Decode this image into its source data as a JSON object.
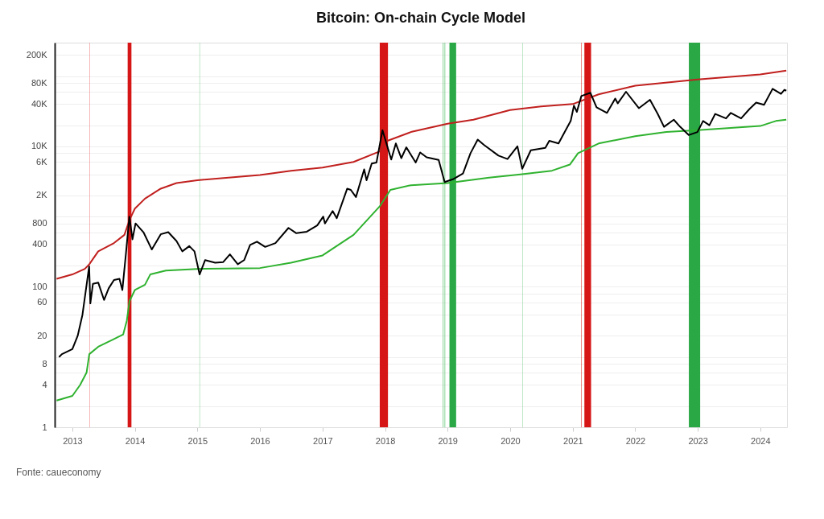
{
  "chart_data": {
    "type": "line",
    "title": "Bitcoin: On-chain Cycle Model",
    "annotations": [
      "Fonte: caueconomy"
    ],
    "log": "y",
    "grid": "y",
    "xlim": [
      "2012-09-20",
      "2024-06-05"
    ],
    "xticks": [
      "2013",
      "2014",
      "2015",
      "2016",
      "2017",
      "2018",
      "2019",
      "2020",
      "2021",
      "2022",
      "2023",
      "2024"
    ],
    "ylim": [
      1,
      300000
    ],
    "yticks": [
      {
        "value": 1,
        "label": "1"
      },
      {
        "value": 2,
        "label": null
      },
      {
        "value": 4,
        "label": "4"
      },
      {
        "value": 6,
        "label": null
      },
      {
        "value": 8,
        "label": "8"
      },
      {
        "value": 10,
        "label": null
      },
      {
        "value": 20,
        "label": "20"
      },
      {
        "value": 40,
        "label": null
      },
      {
        "value": 60,
        "label": "60"
      },
      {
        "value": 80,
        "label": null
      },
      {
        "value": 100,
        "label": "100"
      },
      {
        "value": 200,
        "label": null
      },
      {
        "value": 400,
        "label": "400"
      },
      {
        "value": 600,
        "label": null
      },
      {
        "value": 800,
        "label": "800"
      },
      {
        "value": 1000,
        "label": null
      },
      {
        "value": 2000,
        "label": "2K"
      },
      {
        "value": 4000,
        "label": null
      },
      {
        "value": 6000,
        "label": "6K"
      },
      {
        "value": 8000,
        "label": null
      },
      {
        "value": 10000,
        "label": "10K"
      },
      {
        "value": 20000,
        "label": null
      },
      {
        "value": 40000,
        "label": "40K"
      },
      {
        "value": 60000,
        "label": null
      },
      {
        "value": 80000,
        "label": "80K"
      },
      {
        "value": 100000,
        "label": null
      },
      {
        "value": 200000,
        "label": "200K"
      }
    ],
    "bands": [
      {
        "axis": "x",
        "from": "2013-04-10",
        "to": "2013-04-13",
        "color": "#f08a8a"
      },
      {
        "axis": "x",
        "from": "2013-11-20",
        "to": "2013-12-12",
        "color": "#d40a0a"
      },
      {
        "axis": "x",
        "from": "2015-01-13",
        "to": "2015-01-16",
        "color": "#98d9a3"
      },
      {
        "axis": "x",
        "from": "2017-12-01",
        "to": "2018-01-18",
        "color": "#d40a0a"
      },
      {
        "axis": "x",
        "from": "2018-12-05",
        "to": "2018-12-08",
        "color": "#3dba55"
      },
      {
        "axis": "x",
        "from": "2018-12-15",
        "to": "2018-12-18",
        "color": "#3dba55"
      },
      {
        "axis": "x",
        "from": "2019-01-12",
        "to": "2019-02-20",
        "color": "#1ea33b"
      },
      {
        "axis": "x",
        "from": "2020-03-13",
        "to": "2020-03-16",
        "color": "#98d9a3"
      },
      {
        "axis": "x",
        "from": "2021-02-19",
        "to": "2021-02-22",
        "color": "#e23a3a"
      },
      {
        "axis": "x",
        "from": "2021-03-10",
        "to": "2021-04-18",
        "color": "#d40a0a"
      },
      {
        "axis": "x",
        "from": "2022-11-10",
        "to": "2023-01-15",
        "color": "#1ea33b"
      }
    ],
    "series": [
      {
        "color": "#c0201e",
        "x": [
          "2012-10-01",
          "2013-01-01",
          "2013-03-15",
          "2013-04-10",
          "2013-06-01",
          "2013-09-01",
          "2013-11-01",
          "2013-12-01",
          "2014-01-01",
          "2014-03-01",
          "2014-06-01",
          "2014-09-01",
          "2015-01-01",
          "2016-01-01",
          "2016-07-01",
          "2017-01-01",
          "2017-07-01",
          "2017-12-01",
          "2018-01-15",
          "2018-06-01",
          "2019-01-01",
          "2019-06-01",
          "2020-01-01",
          "2020-07-01",
          "2021-01-01",
          "2021-06-01",
          "2022-01-01",
          "2023-01-01",
          "2024-01-01",
          "2024-06-01"
        ],
        "values": [
          130,
          150,
          180,
          210,
          320,
          420,
          550,
          900,
          1300,
          1800,
          2500,
          3000,
          3300,
          3900,
          4500,
          5000,
          6000,
          8500,
          12000,
          16000,
          21000,
          24000,
          33000,
          37000,
          40000,
          55000,
          73000,
          90000,
          106000,
          120000
        ]
      },
      {
        "color": "#2fb22f",
        "x": [
          "2012-10-01",
          "2013-01-01",
          "2013-02-15",
          "2013-03-25",
          "2013-04-10",
          "2013-06-01",
          "2013-09-01",
          "2013-10-25",
          "2013-11-15",
          "2013-12-01",
          "2014-01-01",
          "2014-03-01",
          "2014-04-01",
          "2014-07-01",
          "2015-01-01",
          "2016-01-01",
          "2016-07-01",
          "2017-01-01",
          "2017-07-01",
          "2017-12-01",
          "2018-02-01",
          "2018-06-01",
          "2019-01-01",
          "2019-09-01",
          "2020-03-01",
          "2020-09-01",
          "2020-12-15",
          "2021-02-01",
          "2021-06-01",
          "2022-01-01",
          "2022-07-01",
          "2023-01-01",
          "2024-01-01",
          "2024-04-01",
          "2024-06-01"
        ],
        "values": [
          2.4,
          2.8,
          4,
          6,
          11,
          14,
          18,
          21,
          33,
          63,
          90,
          107,
          150,
          170,
          180,
          185,
          220,
          280,
          550,
          1400,
          2400,
          2800,
          3000,
          3600,
          4000,
          4500,
          5500,
          8000,
          11000,
          14000,
          16000,
          17000,
          19500,
          23000,
          24000
        ]
      },
      {
        "color": "#000000",
        "x": [
          "2012-10-15",
          "2012-11-01",
          "2013-01-01",
          "2013-02-01",
          "2013-03-01",
          "2013-04-09",
          "2013-04-16",
          "2013-05-01",
          "2013-06-01",
          "2013-07-05",
          "2013-08-01",
          "2013-09-01",
          "2013-10-03",
          "2013-10-20",
          "2013-11-10",
          "2013-11-30",
          "2013-12-18",
          "2014-01-05",
          "2014-02-20",
          "2014-04-10",
          "2014-06-01",
          "2014-07-15",
          "2014-09-01",
          "2014-10-05",
          "2014-11-15",
          "2014-12-15",
          "2015-01-14",
          "2015-02-15",
          "2015-04-15",
          "2015-06-01",
          "2015-07-10",
          "2015-08-25",
          "2015-10-01",
          "2015-11-05",
          "2015-12-15",
          "2016-02-01",
          "2016-04-01",
          "2016-06-16",
          "2016-08-01",
          "2016-10-01",
          "2016-12-01",
          "2017-01-05",
          "2017-01-15",
          "2017-03-01",
          "2017-03-25",
          "2017-05-25",
          "2017-06-15",
          "2017-07-15",
          "2017-09-01",
          "2017-09-15",
          "2017-10-15",
          "2017-11-12",
          "2017-12-17",
          "2018-02-06",
          "2018-03-05",
          "2018-04-06",
          "2018-05-05",
          "2018-06-29",
          "2018-07-25",
          "2018-09-01",
          "2018-11-10",
          "2018-12-15",
          "2019-02-01",
          "2019-04-01",
          "2019-05-15",
          "2019-06-26",
          "2019-08-01",
          "2019-10-25",
          "2019-12-17",
          "2020-02-13",
          "2020-03-12",
          "2020-05-01",
          "2020-07-25",
          "2020-08-17",
          "2020-10-10",
          "2020-11-15",
          "2020-12-20",
          "2021-01-08",
          "2021-01-25",
          "2021-02-20",
          "2021-04-14",
          "2021-05-20",
          "2021-07-20",
          "2021-09-06",
          "2021-09-21",
          "2021-11-08",
          "2022-01-22",
          "2022-03-28",
          "2022-05-12",
          "2022-06-18",
          "2022-08-14",
          "2022-09-20",
          "2022-11-09",
          "2022-12-30",
          "2023-02-01",
          "2023-03-10",
          "2023-04-13",
          "2023-06-15",
          "2023-07-13",
          "2023-09-11",
          "2023-10-30",
          "2023-12-08",
          "2024-01-23",
          "2024-03-13",
          "2024-05-01",
          "2024-05-21",
          "2024-06-01"
        ],
        "values": [
          10,
          11,
          13,
          20,
          40,
          195,
          58,
          110,
          115,
          65,
          95,
          125,
          130,
          90,
          300,
          1000,
          475,
          800,
          600,
          340,
          560,
          600,
          450,
          320,
          380,
          320,
          150,
          240,
          220,
          225,
          290,
          210,
          240,
          395,
          440,
          370,
          420,
          690,
          580,
          610,
          750,
          1000,
          800,
          1200,
          950,
          2500,
          2400,
          1900,
          4700,
          3300,
          5700,
          5900,
          17000,
          6500,
          11000,
          6800,
          9700,
          5900,
          8200,
          7000,
          6400,
          3100,
          3400,
          4100,
          8000,
          12500,
          10500,
          7400,
          6600,
          10000,
          4800,
          8800,
          9500,
          12000,
          11000,
          16000,
          23000,
          38000,
          31000,
          52000,
          58000,
          36000,
          30000,
          48000,
          41000,
          60000,
          35000,
          46000,
          29000,
          19000,
          24000,
          19000,
          14500,
          16000,
          23000,
          20000,
          29000,
          25000,
          30000,
          25000,
          34000,
          42000,
          39000,
          66000,
          56000,
          64000,
          62000
        ]
      }
    ]
  }
}
